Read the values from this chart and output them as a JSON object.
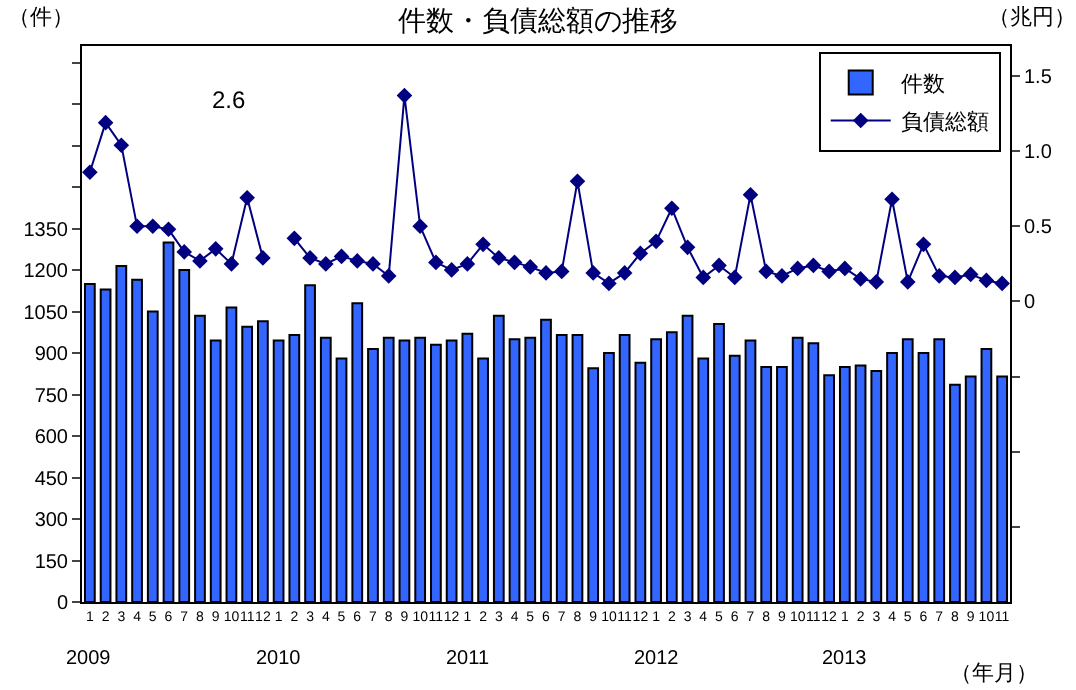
{
  "chart_data": {
    "type": "bar",
    "title": "件数・負債総額の推移",
    "xlabel": "（年月）",
    "ylabel": "（件）",
    "y2label": "（兆円）",
    "categories": [
      "1\n2009",
      "2",
      "3",
      "4",
      "5",
      "6",
      "7",
      "8",
      "9",
      "10",
      "11",
      "12",
      "1\n2010",
      "2",
      "3",
      "4",
      "5",
      "6",
      "7",
      "8",
      "9",
      "10",
      "11",
      "12",
      "1\n2011",
      "2",
      "3",
      "4",
      "5",
      "6",
      "7",
      "8",
      "9",
      "10",
      "11",
      "12",
      "1\n2012",
      "2",
      "3",
      "4",
      "5",
      "6",
      "7",
      "8",
      "9",
      "10",
      "11",
      "12",
      "1\n2013",
      "2",
      "3",
      "4",
      "5",
      "6",
      "7",
      "8",
      "9",
      "10",
      "11"
    ],
    "series": [
      {
        "name": "件数",
        "color": "#3366ff",
        "values": [
          1150,
          1130,
          1215,
          1165,
          1050,
          1300,
          1200,
          1035,
          945,
          1065,
          995,
          1015,
          945,
          965,
          1145,
          955,
          880,
          1080,
          915,
          955,
          945,
          955,
          930,
          945,
          970,
          880,
          1035,
          950,
          955,
          1020,
          965,
          965,
          845,
          900,
          965,
          865,
          950,
          975,
          1035,
          880,
          1005,
          890,
          945,
          850,
          850,
          955,
          935,
          820,
          850,
          855,
          835,
          900,
          950,
          900,
          950,
          785,
          815,
          915,
          815
        ]
      },
      {
        "name": "負債総額",
        "type": "line",
        "axis": "y2",
        "color": "#000080",
        "marker": "diamond",
        "values": [
          0.86,
          1.19,
          1.04,
          0.5,
          0.5,
          0.48,
          0.33,
          0.27,
          0.35,
          0.25,
          0.69,
          0.29,
          null,
          0.42,
          0.29,
          0.25,
          0.3,
          0.27,
          0.25,
          0.17,
          1.37,
          0.5,
          0.26,
          0.21,
          0.25,
          0.38,
          0.29,
          0.26,
          0.23,
          0.19,
          0.2,
          0.8,
          0.19,
          0.12,
          0.19,
          0.32,
          0.4,
          0.62,
          0.36,
          0.16,
          0.24,
          0.16,
          0.71,
          0.2,
          0.17,
          0.22,
          0.24,
          0.2,
          0.22,
          0.15,
          0.13,
          0.68,
          0.13,
          0.38,
          0.17,
          0.16,
          0.18,
          0.14,
          0.12
        ]
      }
    ],
    "ylim": [
      0,
      2010
    ],
    "yticks": [
      0,
      150,
      300,
      450,
      600,
      750,
      900,
      1050,
      1200,
      1350,
      {
        "value": 1500,
        "label": null
      },
      {
        "value": 1650,
        "label": null
      },
      {
        "value": 1800,
        "label": null
      },
      {
        "value": 1950,
        "label": null
      }
    ],
    "y2lim": [
      -2.0,
      1.7
    ],
    "y2ticks": [
      {
        "value": -1.5,
        "label": null
      },
      {
        "value": -1.0,
        "label": null
      },
      {
        "value": -0.5,
        "label": null
      },
      0,
      0.5,
      {
        "value": 1.0,
        "label": "1.0"
      },
      1.5
    ],
    "annotations": [
      "2.6"
    ],
    "legend": "top right"
  }
}
